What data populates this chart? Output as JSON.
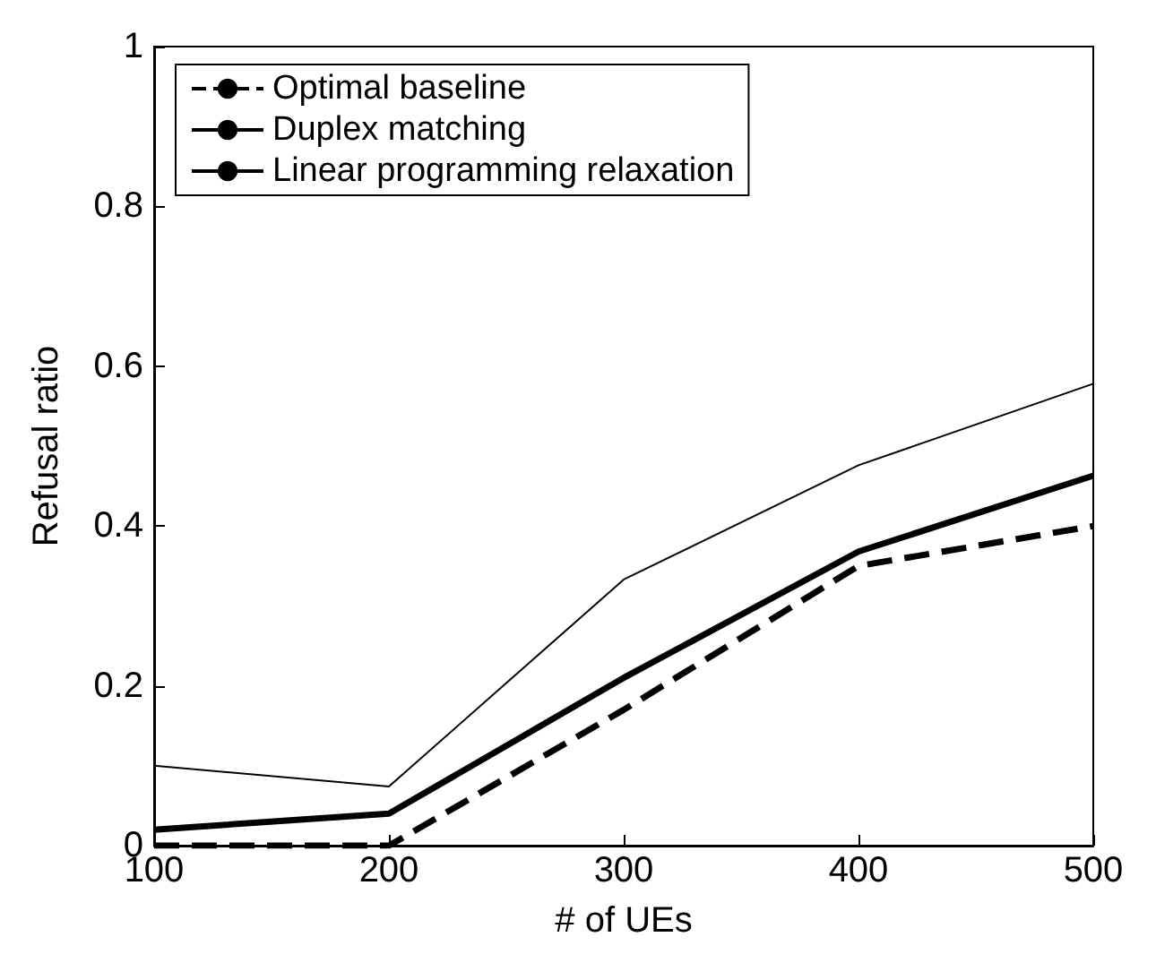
{
  "chart_data": {
    "type": "line",
    "xlabel": "# of UEs",
    "ylabel": "Refusal ratio",
    "x": [
      100,
      200,
      300,
      400,
      500
    ],
    "series": [
      {
        "name": "Optimal baseline",
        "color": "#000000",
        "line_style": "dashed",
        "values": [
          0,
          0,
          0.17,
          0.35,
          0.4
        ]
      },
      {
        "name": "Duplex matching",
        "color": "#000000",
        "line_style": "solid",
        "values": [
          0.02,
          0.04,
          0.21,
          0.368,
          0.463
        ]
      },
      {
        "name": "Linear programming relaxation",
        "color": "#000000",
        "line_style": "solid",
        "values": [
          0.1,
          0.074,
          0.333,
          0.476,
          0.578
        ]
      }
    ],
    "xlim": [
      100,
      500
    ],
    "xticks": [
      100,
      200,
      300,
      400,
      500
    ],
    "ylim": [
      0,
      1
    ],
    "yticks": [
      0,
      0.2,
      0.4,
      0.6,
      0.8,
      1
    ],
    "grid": false,
    "legend": "top left",
    "marker": "none"
  }
}
